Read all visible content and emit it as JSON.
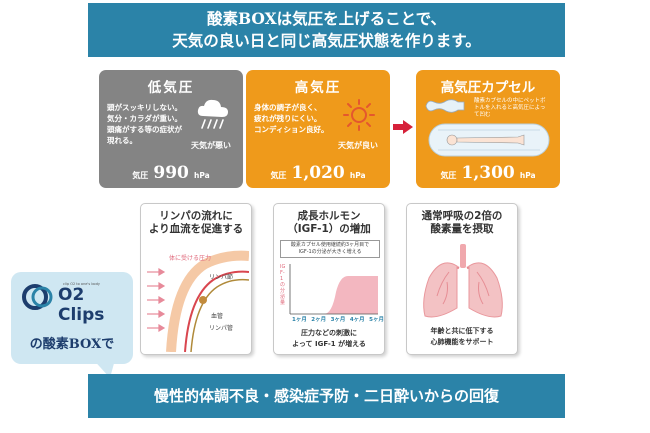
{
  "header": {
    "line1": "酸素BOXは気圧を上げることで、",
    "line2": "天気の良い日と同じ高気圧状態を作ります。"
  },
  "pressure": [
    {
      "title": "低気圧",
      "desc": [
        "頭がスッキリしない。",
        "気分・カラダが重い。",
        "頭痛がする等の症状が",
        "現れる。"
      ],
      "weather": "天気が悪い",
      "label": "気圧",
      "value": "990",
      "unit": "hPa",
      "icon": "rain-cloud-icon"
    },
    {
      "title": "高気圧",
      "desc": [
        "身体の調子が良く、",
        "疲れが残りにくい。",
        "コンディション良好。"
      ],
      "weather": "天気が良い",
      "label": "気圧",
      "value": "1,020",
      "unit": "hPa",
      "icon": "sun-icon"
    },
    {
      "title": "高気圧カプセル",
      "desc": [
        "酸素カプセルの中にペットボ",
        "トルを入れると高気圧によっ",
        "て凹む"
      ],
      "label": "気圧",
      "value": "1,300",
      "unit": "hPa",
      "icon": "capsule-icon"
    }
  ],
  "cards": [
    {
      "title": [
        "リンパの流れに",
        "より血流を促進する"
      ],
      "labels": {
        "pressure": "体に受ける圧力",
        "lymph_node": "リンパ節",
        "vessel": "血管",
        "lymph_duct": "リンパ管"
      }
    },
    {
      "title": [
        "成長ホルモン",
        "（IGF-1）の増加"
      ],
      "note": [
        "酸素カプセル使用継続約3ヶ月目で",
        "IGF-1の分泌が大きく増える"
      ],
      "axis_y": "IGF-1の分泌量",
      "months": [
        "1ヶ月",
        "2ヶ月",
        "3ヶ月",
        "4ヶ月",
        "5ヶ月"
      ],
      "caption": [
        "圧力などの刺激に",
        "よって IGF-1 が増える"
      ]
    },
    {
      "title": [
        "通常呼吸の2倍の",
        "酸素量を摂取"
      ],
      "caption": [
        "年齢と共に低下する",
        "心肺機能をサポート"
      ]
    }
  ],
  "logo": {
    "brand": "O2 Clips",
    "tagline": "clip O2 to one's body",
    "desc": "の酸素BOXで"
  },
  "footer": "慢性的体調不良・感染症予防・二日酔いからの回復",
  "colors": {
    "blue": "#2b83a8",
    "gray": "#848484",
    "orange": "#ef9a1b",
    "arrow": "#d6213a",
    "pink": "#f3c2c4"
  }
}
